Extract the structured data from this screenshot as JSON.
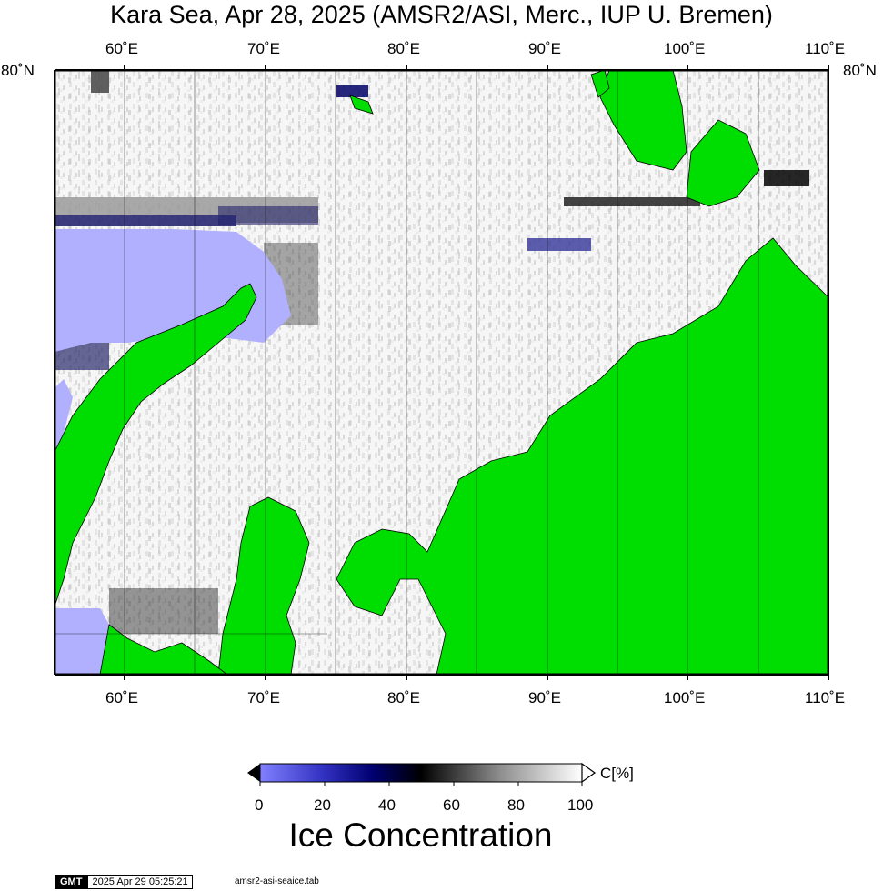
{
  "title": "Kara Sea, Apr 28, 2025 (AMSR2/ASI, Merc., IUP U. Bremen)",
  "map": {
    "lon_range": [
      55,
      110
    ],
    "lat_top_label": "80˚N",
    "top_lon_labels": [
      "60˚E",
      "70˚E",
      "80˚E",
      "90˚E",
      "100˚E",
      "110˚E"
    ],
    "bottom_lon_labels": [
      "60˚E",
      "70˚E",
      "80˚E",
      "90˚E",
      "100˚E",
      "110˚E"
    ],
    "land_color": "#00dd00",
    "open_water_color": "#b0b0ff"
  },
  "colorbar": {
    "unit": "C[%]",
    "ticks": [
      "0",
      "20",
      "40",
      "60",
      "80",
      "100"
    ],
    "title": "Ice Concentration",
    "colors": [
      "#8080ff",
      "#0000a0",
      "#000000",
      "#808080",
      "#ffffff"
    ]
  },
  "footer": {
    "logo": "GMT",
    "timestamp": "2025 Apr 29 05:25:21",
    "file": "amsr2-asi-seaice.tab"
  }
}
